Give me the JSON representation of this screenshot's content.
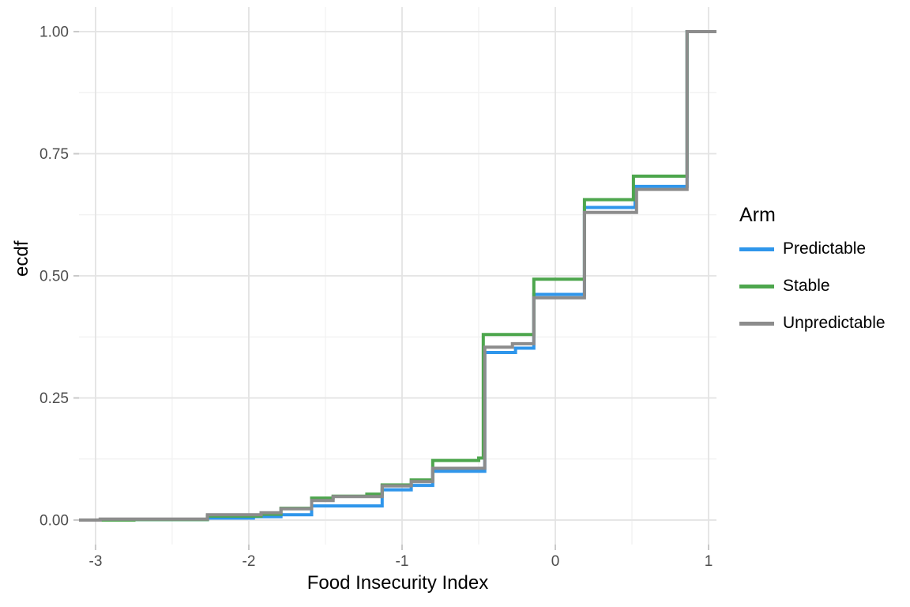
{
  "chart_data": {
    "type": "line",
    "subtype": "step-ecdf",
    "title": "",
    "xlabel": "Food Insecurity Index",
    "ylabel": "ecdf",
    "xlim": [
      -3.108,
      1.0515
    ],
    "ylim": [
      -0.0502,
      1.0502
    ],
    "grid": true,
    "x_ticks": {
      "values": [
        -3,
        -2,
        -1,
        0,
        1
      ],
      "labels": [
        "-3",
        "-2",
        "-1",
        "0",
        "1"
      ]
    },
    "y_ticks": {
      "values": [
        0,
        0.25,
        0.5,
        0.75,
        1.0
      ],
      "labels": [
        "0.00",
        "0.25",
        "0.50",
        "0.75",
        "1.00"
      ]
    },
    "x_minor": [
      -2.5,
      -1.5,
      -0.5,
      0.5
    ],
    "y_minor": [
      0.125,
      0.375,
      0.625,
      0.875
    ],
    "legend": {
      "title": "Arm",
      "position": "right"
    },
    "pad_to_panel_edges": true,
    "series": [
      {
        "name": "Predictable",
        "color": "#2F96EB",
        "steps": [
          [
            -2.91,
            0.001
          ],
          [
            -2.27,
            0.004
          ],
          [
            -1.97,
            0.007
          ],
          [
            -1.79,
            0.011
          ],
          [
            -1.59,
            0.029
          ],
          [
            -1.13,
            0.062
          ],
          [
            -0.94,
            0.071
          ],
          [
            -0.8,
            0.1
          ],
          [
            -0.46,
            0.343
          ],
          [
            -0.26,
            0.352
          ],
          [
            -0.14,
            0.462
          ],
          [
            0.19,
            0.64
          ],
          [
            0.52,
            0.683
          ],
          [
            0.86,
            1.0
          ]
        ]
      },
      {
        "name": "Stable",
        "color": "#4DA64D",
        "steps": [
          [
            -2.75,
            0.001
          ],
          [
            -2.27,
            0.008
          ],
          [
            -1.92,
            0.012
          ],
          [
            -1.79,
            0.024
          ],
          [
            -1.59,
            0.045
          ],
          [
            -1.45,
            0.049
          ],
          [
            -1.23,
            0.053
          ],
          [
            -1.13,
            0.072
          ],
          [
            -0.94,
            0.082
          ],
          [
            -0.8,
            0.122
          ],
          [
            -0.5,
            0.127
          ],
          [
            -0.47,
            0.38
          ],
          [
            -0.14,
            0.493
          ],
          [
            0.19,
            0.656
          ],
          [
            0.51,
            0.704
          ],
          [
            0.86,
            1.0
          ]
        ]
      },
      {
        "name": "Unpredictable",
        "color": "#8C8C8C",
        "steps": [
          [
            -2.97,
            0.002
          ],
          [
            -2.27,
            0.011
          ],
          [
            -1.92,
            0.015
          ],
          [
            -1.79,
            0.023
          ],
          [
            -1.59,
            0.04
          ],
          [
            -1.45,
            0.048
          ],
          [
            -1.13,
            0.07
          ],
          [
            -0.94,
            0.079
          ],
          [
            -0.8,
            0.106
          ],
          [
            -0.46,
            0.354
          ],
          [
            -0.28,
            0.361
          ],
          [
            -0.14,
            0.455
          ],
          [
            0.19,
            0.63
          ],
          [
            0.53,
            0.677
          ],
          [
            0.86,
            1.0
          ]
        ]
      }
    ],
    "style": {
      "grid_major_color": "#E3E3E3",
      "grid_minor_color": "#F1F1F1",
      "tick_mark_color": "#C9C9C9",
      "tick_label_color": "#4D4D4D",
      "line_width": 4
    }
  }
}
